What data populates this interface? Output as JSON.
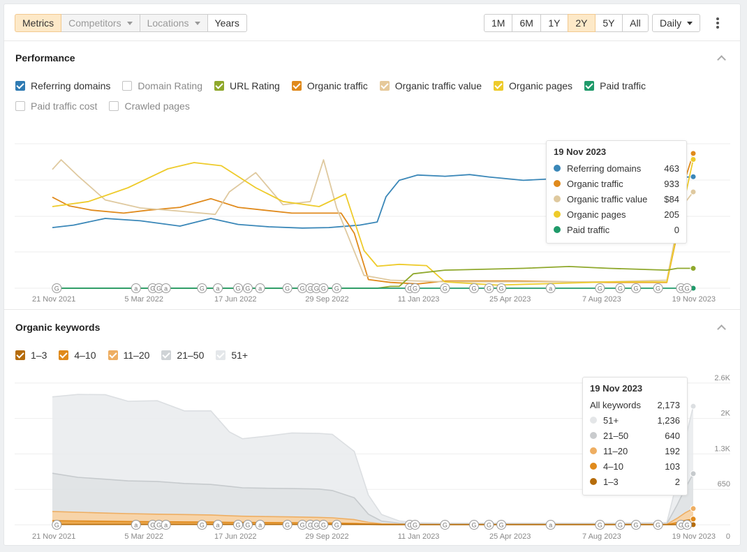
{
  "toolbar": {
    "tabs": [
      {
        "label": "Metrics",
        "active": true,
        "disabled": false,
        "dropdown": false
      },
      {
        "label": "Competitors",
        "active": false,
        "disabled": true,
        "dropdown": true
      },
      {
        "label": "Locations",
        "active": false,
        "disabled": true,
        "dropdown": true
      },
      {
        "label": "Years",
        "active": false,
        "disabled": false,
        "dropdown": false
      }
    ],
    "ranges": [
      {
        "label": "1M",
        "active": false
      },
      {
        "label": "6M",
        "active": false
      },
      {
        "label": "1Y",
        "active": false
      },
      {
        "label": "2Y",
        "active": true
      },
      {
        "label": "5Y",
        "active": false
      },
      {
        "label": "All",
        "active": false
      }
    ],
    "interval": "Daily"
  },
  "performance": {
    "title": "Performance",
    "legend": [
      {
        "label": "Referring domains",
        "checked": true,
        "color": "#2f7bb3"
      },
      {
        "label": "Domain Rating",
        "checked": false,
        "color": "#7b4fb0"
      },
      {
        "label": "URL Rating",
        "checked": true,
        "color": "#8fa82c"
      },
      {
        "label": "Organic traffic",
        "checked": true,
        "color": "#e08a1c"
      },
      {
        "label": "Organic traffic value",
        "checked": true,
        "color": "#e6c99a"
      },
      {
        "label": "Organic pages",
        "checked": true,
        "color": "#eecb2b"
      },
      {
        "label": "Paid traffic",
        "checked": true,
        "color": "#1f9a6a"
      },
      {
        "label": "Paid traffic cost",
        "checked": false,
        "color": "#999999"
      },
      {
        "label": "Crawled pages",
        "checked": false,
        "color": "#999999"
      }
    ],
    "tooltip": {
      "date": "19 Nov 2023",
      "rows": [
        {
          "label": "Referring domains",
          "value": "463",
          "color": "#3a87b8"
        },
        {
          "label": "Organic traffic",
          "value": "933",
          "color": "#e08a1c"
        },
        {
          "label": "Organic traffic value",
          "value": "$84",
          "color": "#dfc99f"
        },
        {
          "label": "Organic pages",
          "value": "205",
          "color": "#eecb2b"
        },
        {
          "label": "Paid traffic",
          "value": "0",
          "color": "#1f9a6a"
        }
      ]
    }
  },
  "keywords": {
    "title": "Organic keywords",
    "legend": [
      {
        "label": "1–3",
        "checked": true,
        "color": "#b56c0c"
      },
      {
        "label": "4–10",
        "checked": true,
        "color": "#e08a1c"
      },
      {
        "label": "11–20",
        "checked": true,
        "color": "#eeae62"
      },
      {
        "label": "21–50",
        "checked": true,
        "color": "#cfd3d6"
      },
      {
        "label": "51+",
        "checked": true,
        "color": "#e4e7ea"
      }
    ],
    "tooltip": {
      "date": "19 Nov 2023",
      "total_label": "All keywords",
      "total_value": "2,173",
      "rows": [
        {
          "label": "51+",
          "value": "1,236",
          "color": "#e4e6e8"
        },
        {
          "label": "21–50",
          "value": "640",
          "color": "#c9cbcd"
        },
        {
          "label": "11–20",
          "value": "192",
          "color": "#eeae62"
        },
        {
          "label": "4–10",
          "value": "103",
          "color": "#e08a1c"
        },
        {
          "label": "1–3",
          "value": "2",
          "color": "#b56c0c"
        }
      ]
    }
  },
  "chart_data": [
    {
      "type": "line",
      "title": "Performance",
      "x_tick_labels": [
        "21 Nov 2021",
        "5 Mar 2022",
        "17 Jun 2022",
        "29 Sep 2022",
        "11 Jan 2023",
        "25 Apr 2023",
        "7 Aug 2023",
        "19 Nov 2023"
      ],
      "x_range": [
        "2021-11-21",
        "2023-11-19"
      ],
      "grid": true,
      "normalized_series": true,
      "annotation_markers": [
        "G",
        "a",
        "G",
        "G",
        "a",
        "G",
        "a",
        "G",
        "G",
        "a",
        "G",
        "G",
        "G",
        "G",
        "G",
        "G",
        "G",
        "G",
        "G",
        "G",
        "G",
        "G",
        "a",
        "G",
        "G",
        "G",
        "G",
        "G",
        "G"
      ],
      "series": [
        {
          "name": "Referring domains",
          "color": "#3a87b8",
          "x": [
            "2021-11-21",
            "2021-12-15",
            "2022-01-20",
            "2022-03-01",
            "2022-04-15",
            "2022-05-20",
            "2022-06-20",
            "2022-07-25",
            "2022-09-01",
            "2022-10-01",
            "2022-11-05",
            "2022-11-25",
            "2022-12-05",
            "2022-12-20",
            "2023-01-10",
            "2023-02-10",
            "2023-03-10",
            "2023-04-01",
            "2023-05-10",
            "2023-06-15",
            "2023-07-20",
            "2023-08-20",
            "2023-09-25",
            "2023-10-20",
            "2023-11-19"
          ],
          "values": [
            252,
            262,
            290,
            280,
            258,
            290,
            265,
            255,
            250,
            252,
            262,
            275,
            380,
            448,
            470,
            465,
            472,
            462,
            448,
            455,
            462,
            463,
            462,
            458,
            463
          ]
        },
        {
          "name": "Organic traffic",
          "color": "#e08a1c",
          "x": [
            "2021-11-21",
            "2021-12-10",
            "2022-01-05",
            "2022-02-10",
            "2022-03-10",
            "2022-04-15",
            "2022-05-20",
            "2022-06-20",
            "2022-07-20",
            "2022-08-20",
            "2022-09-15",
            "2022-10-15",
            "2022-10-30",
            "2022-11-15",
            "2022-12-10",
            "2023-01-10",
            "2023-02-10",
            "2023-05-01",
            "2023-08-15",
            "2023-10-20",
            "2023-11-01",
            "2023-11-10",
            "2023-11-19"
          ],
          "values": [
            630,
            570,
            540,
            520,
            540,
            560,
            620,
            560,
            540,
            520,
            520,
            520,
            380,
            60,
            40,
            30,
            50,
            50,
            40,
            40,
            380,
            760,
            933
          ]
        },
        {
          "name": "Organic traffic value",
          "color": "#dfc99f",
          "x": [
            "2021-11-21",
            "2021-12-01",
            "2021-12-20",
            "2022-01-20",
            "2022-03-01",
            "2022-04-15",
            "2022-05-25",
            "2022-06-10",
            "2022-07-10",
            "2022-08-10",
            "2022-09-10",
            "2022-09-25",
            "2022-10-10",
            "2022-11-10",
            "2022-12-10",
            "2023-02-10",
            "2023-05-01",
            "2023-08-15",
            "2023-10-20",
            "2023-11-05",
            "2023-11-19"
          ],
          "values": [
            74,
            80,
            70,
            55,
            50,
            48,
            46,
            60,
            72,
            52,
            54,
            80,
            50,
            8,
            5,
            4,
            4,
            4,
            5,
            50,
            60
          ]
        },
        {
          "name": "Organic pages",
          "color": "#eecb2b",
          "x": [
            "2021-11-21",
            "2022-01-01",
            "2022-02-15",
            "2022-04-01",
            "2022-05-01",
            "2022-06-01",
            "2022-07-10",
            "2022-08-10",
            "2022-09-20",
            "2022-10-20",
            "2022-11-10",
            "2022-11-25",
            "2022-12-20",
            "2023-01-20",
            "2023-02-10",
            "2023-04-10",
            "2023-08-15",
            "2023-10-20",
            "2023-11-01",
            "2023-11-19"
          ],
          "values": [
            130,
            138,
            160,
            190,
            200,
            195,
            160,
            138,
            130,
            150,
            60,
            35,
            38,
            36,
            10,
            5,
            10,
            10,
            90,
            205
          ]
        },
        {
          "name": "URL Rating",
          "color": "#8fa82c",
          "x": [
            "2021-11-21",
            "2022-11-25",
            "2022-12-10",
            "2022-12-20",
            "2023-01-05",
            "2023-02-10",
            "2023-05-10",
            "2023-07-01",
            "2023-08-15",
            "2023-10-20",
            "2023-11-01",
            "2023-11-19"
          ],
          "values": [
            0,
            0,
            1,
            1,
            8,
            10,
            11,
            12,
            11,
            10,
            11,
            11
          ]
        },
        {
          "name": "Paid traffic",
          "color": "#1f9a6a",
          "x": [
            "2021-11-21",
            "2023-11-19"
          ],
          "values": [
            0,
            0
          ]
        }
      ]
    },
    {
      "type": "area",
      "title": "Organic keywords",
      "x_tick_labels": [
        "21 Nov 2021",
        "5 Mar 2022",
        "17 Jun 2022",
        "29 Sep 2022",
        "11 Jan 2023",
        "25 Apr 2023",
        "7 Aug 2023",
        "19 Nov 2023"
      ],
      "y_tick_labels": [
        "0",
        "650",
        "1.3K",
        "2K",
        "2.6K"
      ],
      "ylim": [
        0,
        2700
      ],
      "grid": true,
      "stacked": true,
      "x": [
        "2021-11-21",
        "2021-12-20",
        "2022-01-20",
        "2022-02-15",
        "2022-03-20",
        "2022-04-20",
        "2022-05-20",
        "2022-06-10",
        "2022-06-25",
        "2022-07-20",
        "2022-08-20",
        "2022-09-20",
        "2022-10-05",
        "2022-10-30",
        "2022-11-15",
        "2022-11-30",
        "2022-12-20",
        "2023-01-10",
        "2023-02-10",
        "2023-05-01",
        "2023-08-15",
        "2023-10-20",
        "2023-11-01",
        "2023-11-10",
        "2023-11-19"
      ],
      "series": [
        {
          "name": "1–3",
          "values": [
            5,
            5,
            5,
            5,
            5,
            5,
            5,
            5,
            5,
            5,
            5,
            5,
            5,
            5,
            5,
            3,
            2,
            2,
            2,
            2,
            2,
            2,
            2,
            2,
            2
          ]
        },
        {
          "name": "4–10",
          "values": [
            70,
            65,
            60,
            55,
            50,
            48,
            45,
            40,
            38,
            36,
            34,
            30,
            28,
            20,
            10,
            5,
            3,
            2,
            2,
            2,
            2,
            2,
            40,
            80,
            103
          ]
        },
        {
          "name": "11–20",
          "values": [
            170,
            160,
            150,
            145,
            140,
            135,
            130,
            120,
            115,
            110,
            105,
            100,
            95,
            70,
            30,
            10,
            5,
            3,
            3,
            3,
            3,
            5,
            80,
            140,
            192
          ]
        },
        {
          "name": "21–50",
          "values": [
            700,
            640,
            620,
            600,
            600,
            570,
            560,
            540,
            520,
            520,
            520,
            520,
            500,
            400,
            150,
            50,
            20,
            10,
            8,
            8,
            8,
            12,
            250,
            450,
            640
          ]
        },
        {
          "name": "51+",
          "values": [
            1400,
            1520,
            1550,
            1460,
            1480,
            1330,
            1350,
            1000,
            900,
            950,
            1020,
            1020,
            1030,
            850,
            350,
            120,
            40,
            20,
            15,
            15,
            15,
            20,
            450,
            900,
            1236
          ]
        }
      ],
      "annotation_markers": [
        "G",
        "a",
        "G",
        "G",
        "a",
        "G",
        "a",
        "G",
        "G",
        "a",
        "G",
        "G",
        "G",
        "G",
        "G",
        "G",
        "G",
        "G",
        "G",
        "G",
        "G",
        "G",
        "a",
        "G",
        "G",
        "G",
        "G",
        "G",
        "G"
      ]
    }
  ]
}
